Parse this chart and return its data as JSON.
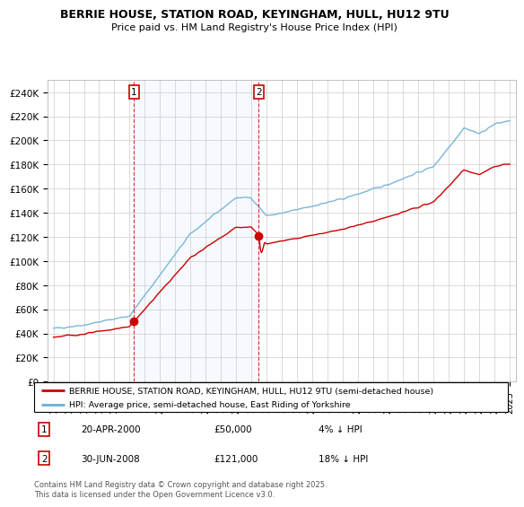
{
  "title": "BERRIE HOUSE, STATION ROAD, KEYINGHAM, HULL, HU12 9TU",
  "subtitle": "Price paid vs. HM Land Registry's House Price Index (HPI)",
  "legend_line1": "BERRIE HOUSE, STATION ROAD, KEYINGHAM, HULL, HU12 9TU (semi-detached house)",
  "legend_line2": "HPI: Average price, semi-detached house, East Riding of Yorkshire",
  "annotation1_label": "1",
  "annotation1_date": "20-APR-2000",
  "annotation1_price": "£50,000",
  "annotation1_hpi": "4% ↓ HPI",
  "annotation2_label": "2",
  "annotation2_date": "30-JUN-2008",
  "annotation2_price": "£121,000",
  "annotation2_hpi": "18% ↓ HPI",
  "footer": "Contains HM Land Registry data © Crown copyright and database right 2025.\nThis data is licensed under the Open Government Licence v3.0.",
  "red_color": "#cc0000",
  "blue_color": "#6baed6",
  "shade_color": "#ddeeff",
  "annotation_box_color": "#cc0000",
  "ylim": [
    0,
    250000
  ],
  "yticks": [
    0,
    20000,
    40000,
    60000,
    80000,
    100000,
    120000,
    140000,
    160000,
    180000,
    200000,
    220000,
    240000
  ],
  "ytick_labels": [
    "£0",
    "£20K",
    "£40K",
    "£60K",
    "£80K",
    "£100K",
    "£120K",
    "£140K",
    "£160K",
    "£180K",
    "£200K",
    "£220K",
    "£240K"
  ],
  "sale1_x": 2000.3,
  "sale1_y": 50000,
  "sale2_x": 2008.5,
  "sale2_y": 121000,
  "xmin": 1995,
  "xmax": 2025
}
